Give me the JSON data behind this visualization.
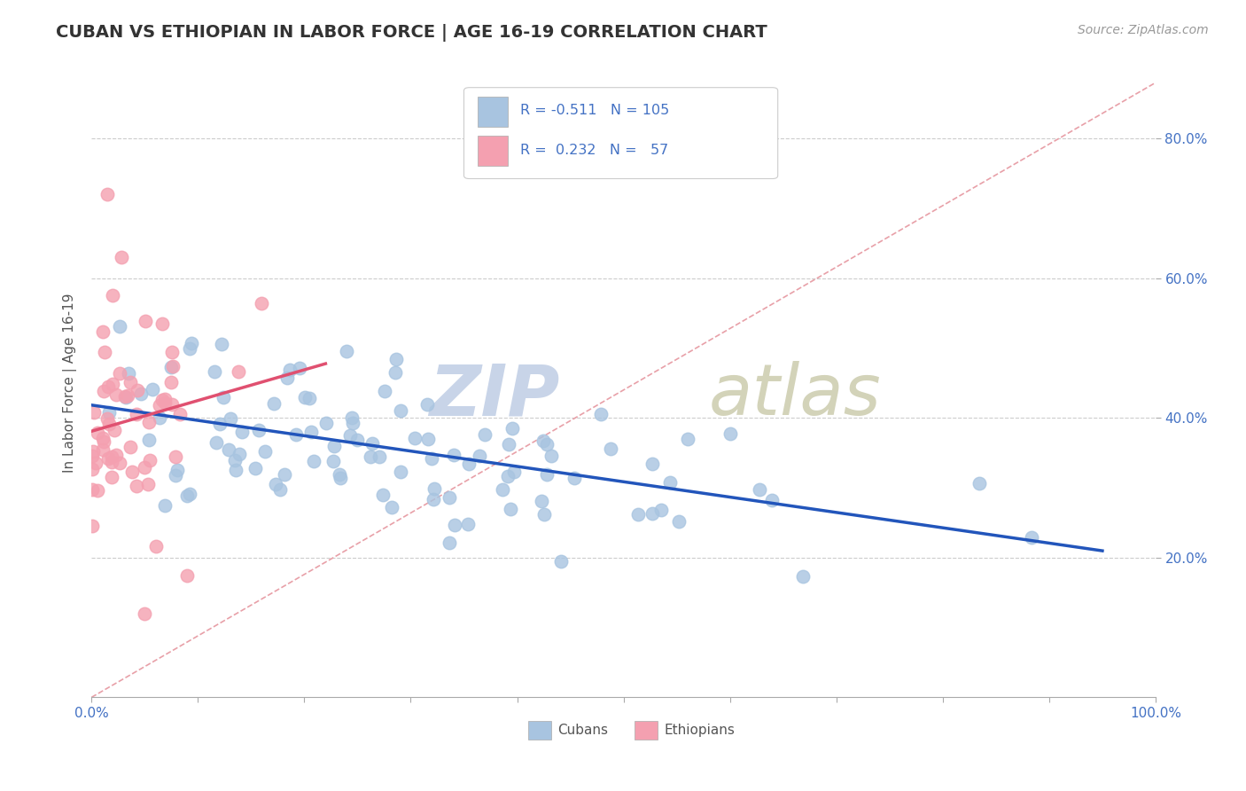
{
  "title": "CUBAN VS ETHIOPIAN IN LABOR FORCE | AGE 16-19 CORRELATION CHART",
  "source": "Source: ZipAtlas.com",
  "ylabel": "In Labor Force | Age 16-19",
  "xlim": [
    0.0,
    1.0
  ],
  "ylim": [
    0.0,
    0.9
  ],
  "ytick_positions": [
    0.2,
    0.4,
    0.6,
    0.8
  ],
  "ytick_labels": [
    "20.0%",
    "40.0%",
    "60.0%",
    "80.0%"
  ],
  "xtick_positions": [
    0.0,
    0.1,
    0.2,
    0.3,
    0.4,
    0.5,
    0.6,
    0.7,
    0.8,
    0.9,
    1.0
  ],
  "cuban_R": -0.511,
  "cuban_N": 105,
  "ethiopian_R": 0.232,
  "ethiopian_N": 57,
  "cuban_color": "#a8c4e0",
  "ethiopian_color": "#f4a0b0",
  "cuban_line_color": "#2255bb",
  "ethiopian_line_color": "#e05070",
  "diag_line_color": "#e8a0a8",
  "background_color": "#ffffff",
  "grid_color": "#cccccc",
  "watermark_zip_color": "#c8d4e8",
  "watermark_atlas_color": "#c8c8a8",
  "legend_text_color": "#4472c4",
  "title_color": "#333333",
  "source_color": "#999999",
  "axis_label_color": "#4472c4",
  "bottom_label_color": "#555555",
  "cuban_seed": 42,
  "ethiopian_seed": 7
}
